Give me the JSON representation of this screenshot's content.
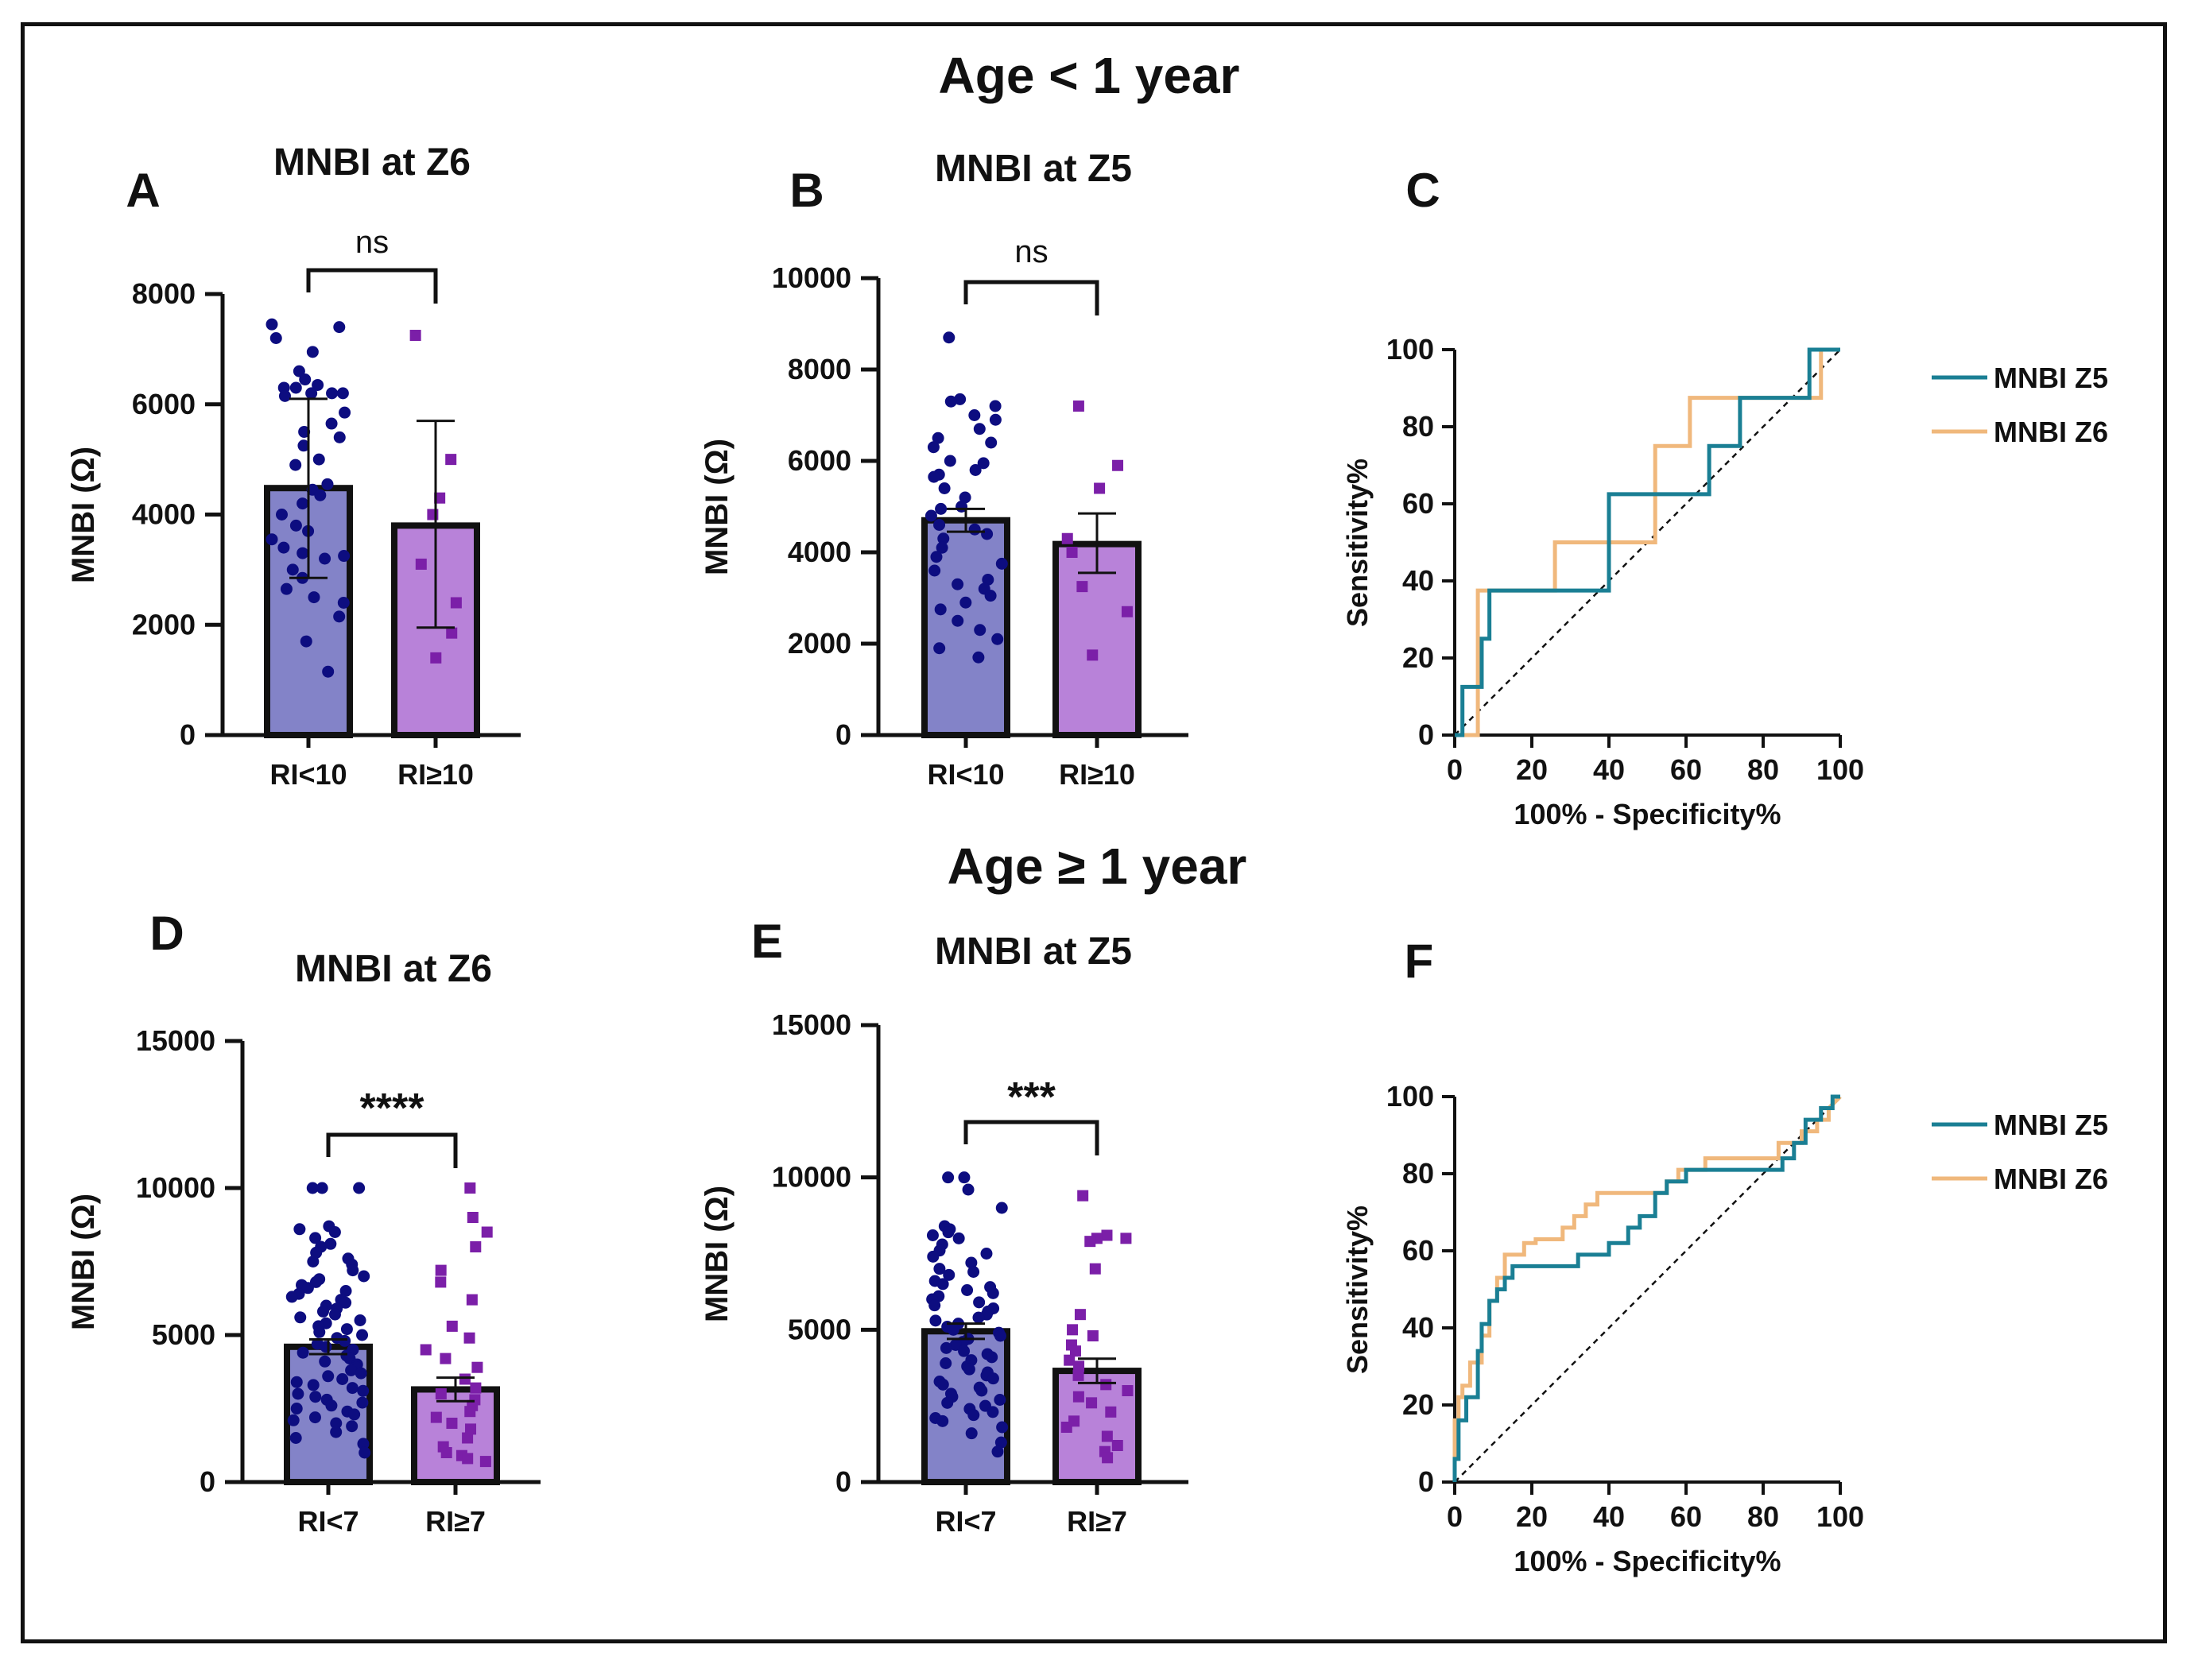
{
  "header": {
    "top_title": "Age < 1 year",
    "bottom_title": "Age ≥ 1 year"
  },
  "colors": {
    "group1_fill": "#8383c8",
    "group1_dot": "#0d0d80",
    "group2_fill": "#b882d9",
    "group2_dot": "#7b1fa8",
    "z5": "#1a7f94",
    "z6": "#f0b87c",
    "axis": "#111111"
  },
  "chart_data": [
    {
      "id": "A",
      "panel_letter": "A",
      "type": "bar",
      "title": "MNBI at Z6",
      "ylabel": "MNBI (Ω)",
      "ylim": [
        0,
        8000
      ],
      "yticks": [
        0,
        2000,
        4000,
        6000,
        8000
      ],
      "ytick_labels": [
        "0",
        "2000",
        "4000",
        "6000",
        "8000"
      ],
      "categories": [
        "RI<10",
        "RI≥10"
      ],
      "values": [
        4480,
        3800
      ],
      "error_low": [
        2850,
        1950
      ],
      "error_high": [
        6100,
        5700
      ],
      "significance": "ns",
      "points": [
        [
          7450,
          7400,
          7200,
          6950,
          6600,
          6450,
          6350,
          6300,
          6300,
          6200,
          6200,
          6200,
          6150,
          5850,
          5650,
          5500,
          5400,
          5250,
          5000,
          4900,
          4550,
          4450,
          4350,
          4200,
          4000,
          3800,
          3700,
          3550,
          3400,
          3300,
          3250,
          3200,
          3000,
          2850,
          2650,
          2500,
          2400,
          2150,
          1700,
          1150
        ],
        [
          7250,
          5000,
          4300,
          4000,
          3100,
          2400,
          1850,
          1400
        ]
      ]
    },
    {
      "id": "B",
      "panel_letter": "B",
      "type": "bar",
      "title": "MNBI at Z5",
      "ylabel": "MNBI (Ω)",
      "ylim": [
        0,
        10000
      ],
      "yticks": [
        0,
        2000,
        4000,
        6000,
        8000,
        10000
      ],
      "ytick_labels": [
        "0",
        "2000",
        "4000",
        "6000",
        "8000",
        "10000"
      ],
      "categories": [
        "RI<10",
        "RI≥10"
      ],
      "values": [
        4700,
        4180
      ],
      "error_low": [
        4450,
        3550
      ],
      "error_high": [
        4950,
        4850
      ],
      "significance": "ns",
      "points": [
        [
          8700,
          7350,
          7300,
          7200,
          7000,
          6900,
          6700,
          6500,
          6400,
          6300,
          6000,
          5950,
          5800,
          5700,
          5650,
          5400,
          5200,
          5000,
          4950,
          4800,
          4600,
          4500,
          4400,
          4300,
          4100,
          3900,
          3750,
          3600,
          3400,
          3300,
          3200,
          3050,
          2900,
          2750,
          2500,
          2300,
          2100,
          1900,
          1700
        ],
        [
          7200,
          5900,
          5400,
          4300,
          4000,
          3250,
          2700,
          1750
        ]
      ]
    },
    {
      "id": "C",
      "panel_letter": "C",
      "type": "line",
      "title": "",
      "xlabel": "100% - Specificity%",
      "ylabel": "Sensitivity%",
      "xlim": [
        0,
        100
      ],
      "ylim": [
        0,
        100
      ],
      "ticks": [
        0,
        20,
        40,
        60,
        80,
        100
      ],
      "tick_labels": [
        "0",
        "20",
        "40",
        "60",
        "80",
        "100"
      ],
      "diagonal": true,
      "legend": [
        "MNBI Z5",
        "MNBI Z6"
      ],
      "series": [
        {
          "name": "MNBI Z5",
          "x": [
            0,
            2,
            2,
            7,
            7,
            9,
            9,
            11,
            11,
            40,
            40,
            66,
            66,
            74,
            74,
            92,
            92,
            100
          ],
          "y": [
            0,
            0,
            12.5,
            12.5,
            25,
            25,
            37.5,
            37.5,
            37.5,
            37.5,
            62.5,
            62.5,
            75,
            75,
            87.5,
            87.5,
            100,
            100
          ]
        },
        {
          "name": "MNBI Z6",
          "x": [
            0,
            6,
            6,
            26,
            26,
            52,
            52,
            61,
            61,
            92,
            92,
            95,
            95,
            100
          ],
          "y": [
            0,
            0,
            37.5,
            37.5,
            50,
            50,
            75,
            75,
            87.5,
            87.5,
            87.5,
            87.5,
            100,
            100
          ]
        }
      ]
    },
    {
      "id": "D",
      "panel_letter": "D",
      "type": "bar",
      "title": "MNBI at Z6",
      "ylabel": "MNBI (Ω)",
      "ylim": [
        0,
        15000
      ],
      "yticks": [
        0,
        5000,
        10000,
        15000
      ],
      "ytick_labels": [
        "0",
        "5000",
        "10000",
        "15000"
      ],
      "categories": [
        "RI<7",
        "RI≥7"
      ],
      "values": [
        4600,
        3150
      ],
      "error_low": [
        4350,
        2750
      ],
      "error_high": [
        4850,
        3550
      ],
      "significance": "****",
      "points": [
        [
          10000,
          10000,
          10000,
          8700,
          8600,
          8500,
          8300,
          8100,
          8000,
          7800,
          7600,
          7500,
          7400,
          7200,
          7000,
          6900,
          6800,
          6700,
          6600,
          6500,
          6400,
          6300,
          6200,
          6100,
          6000,
          5900,
          5800,
          5700,
          5600,
          5500,
          5400,
          5300,
          5200,
          5100,
          5000,
          4900,
          4800,
          4700,
          4600,
          4500,
          4400,
          4300,
          4200,
          4100,
          4000,
          3900,
          3800,
          3700,
          3600,
          3500,
          3400,
          3300,
          3200,
          3100,
          3000,
          2900,
          2800,
          2700,
          2600,
          2500,
          2400,
          2300,
          2200,
          2100,
          2000,
          1900,
          1700,
          1500,
          1300,
          1000
        ],
        [
          10000,
          9000,
          8500,
          8000,
          7200,
          6800,
          6200,
          5300,
          4900,
          4500,
          4200,
          3900,
          3500,
          3200,
          3000,
          2800,
          2600,
          2400,
          2200,
          2000,
          1800,
          1500,
          1200,
          1000,
          900,
          800,
          700
        ]
      ]
    },
    {
      "id": "E",
      "panel_letter": "E",
      "type": "bar",
      "title": "MNBI at Z5",
      "ylabel": "MNBI (Ω)",
      "ylim": [
        0,
        15000
      ],
      "yticks": [
        0,
        5000,
        10000,
        15000
      ],
      "ytick_labels": [
        "0",
        "5000",
        "10000",
        "15000"
      ],
      "categories": [
        "RI<7",
        "RI≥7"
      ],
      "values": [
        4950,
        3650
      ],
      "error_low": [
        4700,
        3250
      ],
      "error_high": [
        5200,
        4050
      ],
      "significance": "***",
      "points": [
        [
          10000,
          10000,
          9600,
          9000,
          8400,
          8300,
          8200,
          8100,
          8000,
          7800,
          7600,
          7500,
          7400,
          7200,
          7000,
          6900,
          6800,
          6600,
          6500,
          6400,
          6300,
          6200,
          6100,
          6000,
          5900,
          5800,
          5700,
          5600,
          5500,
          5400,
          5300,
          5200,
          5100,
          5000,
          4900,
          4800,
          4700,
          4600,
          4500,
          4400,
          4300,
          4200,
          4100,
          4000,
          3900,
          3800,
          3700,
          3600,
          3500,
          3400,
          3300,
          3200,
          3100,
          3000,
          2900,
          2800,
          2700,
          2600,
          2500,
          2400,
          2300,
          2200,
          2100,
          2000,
          1800,
          1600,
          1300,
          1000
        ],
        [
          9400,
          8100,
          8000,
          8000,
          7900,
          7000,
          5500,
          5000,
          4800,
          4500,
          4300,
          4000,
          3800,
          3500,
          3200,
          3000,
          2800,
          2600,
          2300,
          2000,
          1800,
          1500,
          1200,
          1000,
          800
        ]
      ]
    },
    {
      "id": "F",
      "panel_letter": "F",
      "type": "line",
      "title": "",
      "xlabel": "100% - Specificity%",
      "ylabel": "Sensitivity%",
      "xlim": [
        0,
        100
      ],
      "ylim": [
        0,
        100
      ],
      "ticks": [
        0,
        20,
        40,
        60,
        80,
        100
      ],
      "tick_labels": [
        "0",
        "20",
        "40",
        "60",
        "80",
        "100"
      ],
      "diagonal": true,
      "legend": [
        "MNBI Z5",
        "MNBI Z6"
      ],
      "series": [
        {
          "name": "MNBI Z5",
          "x": [
            0,
            0,
            1,
            1,
            3,
            3,
            6,
            6,
            7,
            7,
            9,
            9,
            11,
            11,
            13,
            13,
            15,
            15,
            20,
            20,
            32,
            32,
            40,
            40,
            45,
            45,
            48,
            48,
            52,
            52,
            55,
            55,
            60,
            60,
            85,
            85,
            88,
            88,
            91,
            91,
            95,
            95,
            98,
            98,
            100
          ],
          "y": [
            0,
            6,
            6,
            16,
            16,
            22,
            22,
            34,
            34,
            41,
            41,
            47,
            47,
            50,
            50,
            53,
            53,
            56,
            56,
            56,
            56,
            59,
            59,
            62,
            62,
            66,
            66,
            69,
            69,
            75,
            75,
            78,
            78,
            81,
            81,
            84,
            84,
            88,
            88,
            94,
            94,
            97,
            97,
            100,
            100
          ]
        },
        {
          "name": "MNBI Z6",
          "x": [
            0,
            0,
            1,
            1,
            2,
            2,
            4,
            4,
            7,
            7,
            9,
            9,
            11,
            11,
            13,
            13,
            18,
            18,
            21,
            21,
            28,
            28,
            31,
            31,
            34,
            34,
            37,
            37,
            41,
            41,
            55,
            55,
            58,
            58,
            65,
            65,
            84,
            84,
            90,
            90,
            94,
            94,
            97,
            97,
            100
          ],
          "y": [
            0,
            16,
            16,
            22,
            22,
            25,
            25,
            31,
            31,
            38,
            38,
            47,
            47,
            53,
            53,
            59,
            59,
            62,
            62,
            63,
            63,
            66,
            66,
            69,
            69,
            72,
            72,
            75,
            75,
            75,
            75,
            78,
            78,
            81,
            81,
            84,
            84,
            88,
            88,
            91,
            91,
            94,
            94,
            97,
            100
          ]
        }
      ]
    }
  ]
}
